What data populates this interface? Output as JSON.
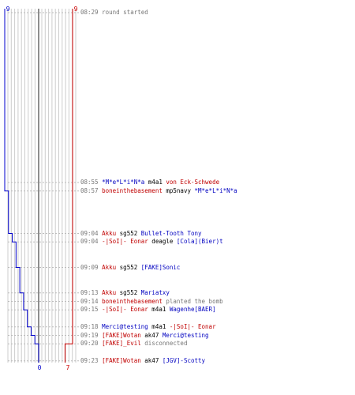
{
  "counts": {
    "blue_start": "9",
    "red_start": "9",
    "blue_end": "0",
    "red_end": "7"
  },
  "chart_data": {
    "type": "line",
    "title": "",
    "xlabel": "",
    "ylabel": "",
    "series": [
      {
        "color": "#0000cc",
        "values": [
          9,
          9,
          8,
          8,
          7,
          6,
          5,
          4,
          3,
          3,
          2,
          1,
          1,
          0
        ]
      },
      {
        "color": "#cc0000",
        "values": [
          9,
          9,
          9,
          9,
          9,
          9,
          9,
          9,
          9,
          9,
          9,
          9,
          8,
          7
        ]
      }
    ],
    "ylim": [
      0,
      9
    ],
    "grid": true
  },
  "events": [
    {
      "row": 0,
      "time": "08:29",
      "parts": [
        {
          "c": "gray",
          "t": "round started"
        }
      ]
    },
    {
      "row": 20,
      "time": "08:55",
      "parts": [
        {
          "c": "blue",
          "t": "*M*e*L*i*N*a"
        },
        {
          "c": "plain",
          "t": " m4a1 "
        },
        {
          "c": "red",
          "t": "von Eck-Schwede"
        }
      ]
    },
    {
      "row": 21,
      "time": "08:57",
      "parts": [
        {
          "c": "red",
          "t": "boneinthebasement"
        },
        {
          "c": "plain",
          "t": " mp5navy "
        },
        {
          "c": "blue",
          "t": "*M*e*L*i*N*a"
        }
      ]
    },
    {
      "row": 26,
      "time": "09:04",
      "parts": [
        {
          "c": "red",
          "t": "Akku"
        },
        {
          "c": "plain",
          "t": " sg552 "
        },
        {
          "c": "blue",
          "t": "Bullet-Tooth Tony"
        }
      ]
    },
    {
      "row": 27,
      "time": "09:04",
      "parts": [
        {
          "c": "red",
          "t": "-|SoI|- Eonar"
        },
        {
          "c": "plain",
          "t": " deagle "
        },
        {
          "c": "blue",
          "t": "[Cola](Bier)t"
        }
      ]
    },
    {
      "row": 30,
      "time": "09:09",
      "parts": [
        {
          "c": "red",
          "t": "Akku"
        },
        {
          "c": "plain",
          "t": " sg552 "
        },
        {
          "c": "blue",
          "t": "[FAKE]Sonic"
        }
      ]
    },
    {
      "row": 33,
      "time": "09:13",
      "parts": [
        {
          "c": "red",
          "t": "Akku"
        },
        {
          "c": "plain",
          "t": " sg552 "
        },
        {
          "c": "blue",
          "t": "Mariatxy"
        }
      ]
    },
    {
      "row": 34,
      "time": "09:14",
      "parts": [
        {
          "c": "red",
          "t": "boneinthebasement"
        },
        {
          "c": "gray",
          "t": " planted the bomb"
        }
      ]
    },
    {
      "row": 35,
      "time": "09:15",
      "parts": [
        {
          "c": "red",
          "t": "-|SoI|- Eonar"
        },
        {
          "c": "plain",
          "t": " m4a1 "
        },
        {
          "c": "blue",
          "t": "Wagenhe[BAER]"
        }
      ]
    },
    {
      "row": 37,
      "time": "09:18",
      "parts": [
        {
          "c": "blue",
          "t": "Merci@testing"
        },
        {
          "c": "plain",
          "t": " m4a1 "
        },
        {
          "c": "red",
          "t": "-|SoI|- Eonar"
        }
      ]
    },
    {
      "row": 38,
      "time": "09:19",
      "parts": [
        {
          "c": "red",
          "t": "[FAKE]Wotan"
        },
        {
          "c": "plain",
          "t": " ak47 "
        },
        {
          "c": "blue",
          "t": "Merci@testing"
        }
      ]
    },
    {
      "row": 39,
      "time": "09:20",
      "parts": [
        {
          "c": "red",
          "t": "[FAKE]_Evil"
        },
        {
          "c": "gray",
          "t": " disconnected"
        }
      ]
    },
    {
      "row": 41,
      "time": "09:23",
      "parts": [
        {
          "c": "red",
          "t": "[FAKE]Wotan"
        },
        {
          "c": "plain",
          "t": " ak47 "
        },
        {
          "c": "blue",
          "t": "[JGV]-Scotty"
        }
      ]
    }
  ]
}
